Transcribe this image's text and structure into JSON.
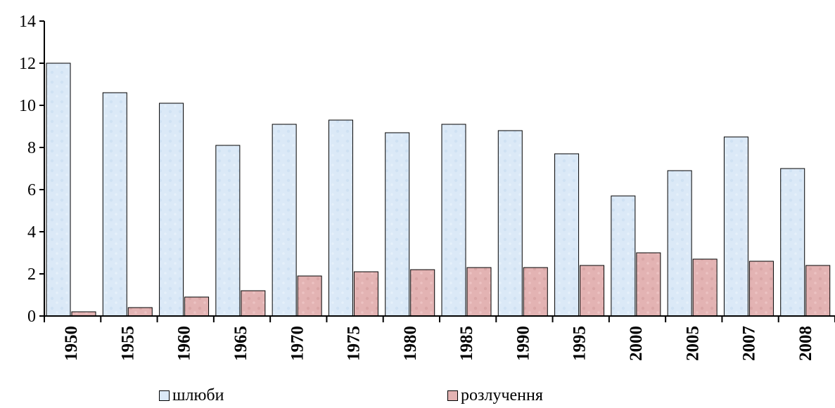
{
  "chart_data": {
    "type": "bar",
    "categories": [
      "1950",
      "1955",
      "1960",
      "1965",
      "1970",
      "1975",
      "1980",
      "1985",
      "1990",
      "1995",
      "2000",
      "2005",
      "2007",
      "2008"
    ],
    "series": [
      {
        "name": "шлюби",
        "color": "#dbe9f7",
        "values": [
          12.0,
          10.6,
          10.1,
          8.1,
          9.1,
          9.3,
          8.7,
          9.1,
          8.8,
          7.7,
          5.7,
          6.9,
          8.5,
          7.0
        ]
      },
      {
        "name": "розлучення",
        "color": "#e3b3b3",
        "values": [
          0.2,
          0.4,
          0.9,
          1.2,
          1.9,
          2.1,
          2.2,
          2.3,
          2.3,
          2.4,
          3.0,
          2.7,
          2.6,
          2.4
        ]
      }
    ],
    "ylim": [
      0,
      14
    ],
    "yticks": [
      "0",
      "2",
      "4",
      "6",
      "8",
      "10",
      "12",
      "14"
    ],
    "grid": false,
    "legend_position": "bottom"
  }
}
